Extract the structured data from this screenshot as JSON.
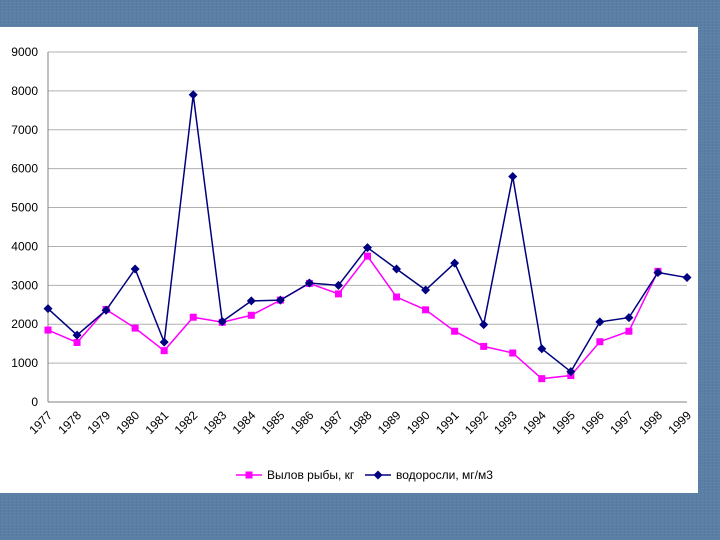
{
  "chart_data": {
    "type": "line",
    "title": "",
    "xlabel": "",
    "ylabel": "",
    "categories": [
      "1977",
      "1978",
      "1979",
      "1980",
      "1981",
      "1982",
      "1983",
      "1984",
      "1985",
      "1986",
      "1987",
      "1988",
      "1989",
      "1990",
      "1991",
      "1992",
      "1993",
      "1994",
      "1995",
      "1996",
      "1997",
      "1998",
      "1999"
    ],
    "ylim": [
      0,
      9000
    ],
    "yticks": [
      "0",
      "1000",
      "2000",
      "3000",
      "4000",
      "5000",
      "6000",
      "7000",
      "8000",
      "9000"
    ],
    "grid": true,
    "legend_position": "bottom",
    "series": [
      {
        "name": "Вылов рыбы, кг",
        "color": "#ff00ff",
        "marker": "square",
        "values": [
          1850,
          1530,
          2380,
          1900,
          1320,
          2180,
          2050,
          2230,
          2620,
          3050,
          2780,
          3750,
          2700,
          2370,
          1820,
          1430,
          1260,
          600,
          680,
          1550,
          1820,
          3360,
          null
        ]
      },
      {
        "name": "водоросли, мг/м3",
        "color": "#000080",
        "marker": "diamond",
        "values": [
          2400,
          1720,
          2360,
          3420,
          1540,
          7900,
          2070,
          2600,
          2620,
          3060,
          3000,
          3970,
          3420,
          2880,
          3570,
          1990,
          5800,
          1370,
          780,
          2060,
          2170,
          3330,
          3200
        ]
      }
    ]
  }
}
